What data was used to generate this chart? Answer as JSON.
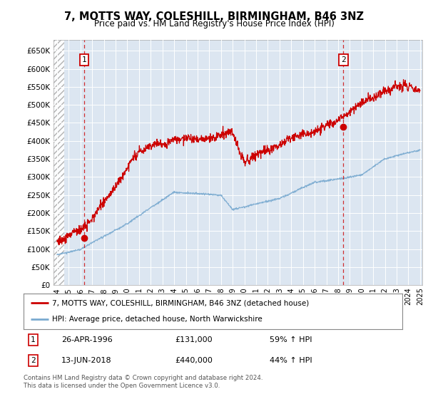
{
  "title": "7, MOTTS WAY, COLESHILL, BIRMINGHAM, B46 3NZ",
  "subtitle": "Price paid vs. HM Land Registry's House Price Index (HPI)",
  "legend_line1": "7, MOTTS WAY, COLESHILL, BIRMINGHAM, B46 3NZ (detached house)",
  "legend_line2": "HPI: Average price, detached house, North Warwickshire",
  "annotation1": {
    "label": "1",
    "date_str": "26-APR-1996",
    "price_str": "£131,000",
    "pct_str": "59% ↑ HPI"
  },
  "annotation2": {
    "label": "2",
    "date_str": "13-JUN-2018",
    "price_str": "£440,000",
    "pct_str": "44% ↑ HPI"
  },
  "footer": "Contains HM Land Registry data © Crown copyright and database right 2024.\nThis data is licensed under the Open Government Licence v3.0.",
  "price_color": "#cc0000",
  "hpi_color": "#7aaad0",
  "bg_color": "#dce6f1",
  "ylim": [
    0,
    680000
  ],
  "yticks": [
    0,
    50000,
    100000,
    150000,
    200000,
    250000,
    300000,
    350000,
    400000,
    450000,
    500000,
    550000,
    600000,
    650000
  ],
  "xstart_year": 1994,
  "xend_year": 2025,
  "point1_year": 1996.32,
  "point1_price": 131000,
  "point2_year": 2018.45,
  "point2_price": 440000
}
